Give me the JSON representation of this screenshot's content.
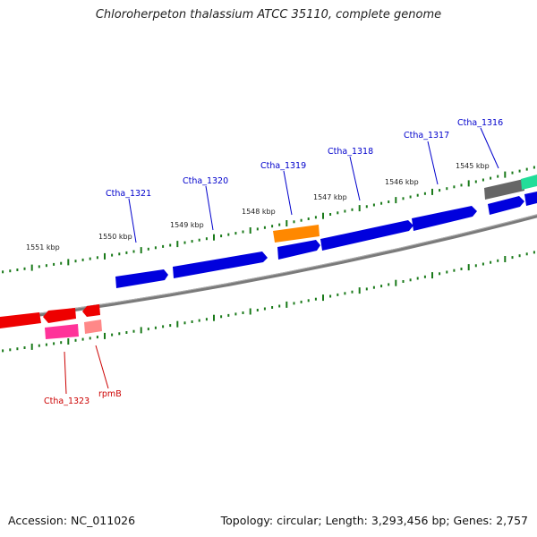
{
  "title": "Chloroherpeton thalassium ATCC 35110, complete genome",
  "footer": {
    "accession": "Accession: NC_011026",
    "summary": "Topology: circular; Length: 3,293,456 bp; Genes: 2,757"
  },
  "ruler": [
    {
      "label": "1545 kbp"
    },
    {
      "label": "1546 kbp"
    },
    {
      "label": "1547 kbp"
    },
    {
      "label": "1548 kbp"
    },
    {
      "label": "1549 kbp"
    },
    {
      "label": "1550 kbp"
    },
    {
      "label": "1551 kbp"
    }
  ],
  "gene_labels": [
    {
      "text": "Ctha_1316",
      "color": "#0000cc"
    },
    {
      "text": "Ctha_1317",
      "color": "#0000cc"
    },
    {
      "text": "Ctha_1318",
      "color": "#0000cc"
    },
    {
      "text": "Ctha_1319",
      "color": "#0000cc"
    },
    {
      "text": "Ctha_1320",
      "color": "#0000cc"
    },
    {
      "text": "Ctha_1321",
      "color": "#0000cc"
    },
    {
      "text": "Ctha_1323",
      "color": "#cc0000"
    },
    {
      "text": "rpmB",
      "color": "#cc0000"
    }
  ],
  "colors": {
    "backbone": "#808080",
    "tick": "#1a7a1a",
    "forward_cds": "#0000dd",
    "reverse_cds": "#ee0000",
    "rrna_like": "#ff8800",
    "pink": "#ff3399",
    "gray_feature": "#666666",
    "teal_feature": "#22dd99",
    "light_red": "#ff8888"
  }
}
